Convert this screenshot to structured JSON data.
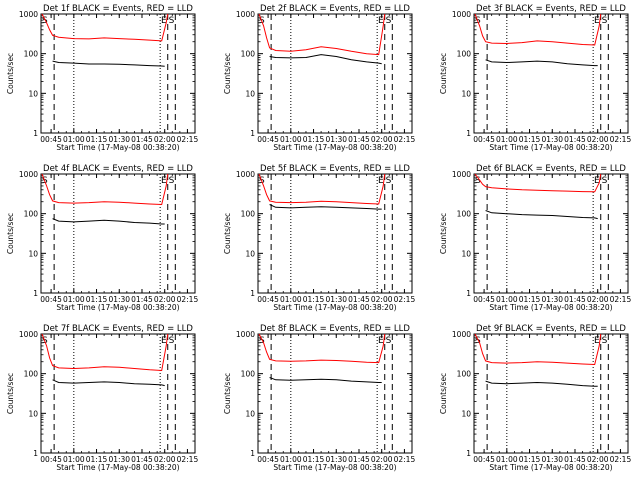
{
  "ylabel": "Counts/sec",
  "xlabel": "Start Time (17-May-08 00:38:20)",
  "x_tick_labels": [
    "00:45",
    "01:00",
    "01:15",
    "01:30",
    "01:45",
    "02:00",
    "02:15"
  ],
  "y_tick_labels": [
    "1",
    "10",
    "100",
    "1000"
  ],
  "marker_labels": [
    "S",
    "E",
    "S"
  ],
  "colors": {
    "events": "#000000",
    "lld": "#ff0000",
    "axes": "#000000",
    "background": "#ffffff"
  },
  "chart_data": [
    {
      "type": "line",
      "title": "Det 1f BLACK = Events, RED = LLD",
      "xlim": [
        "00:38:20",
        "02:20"
      ],
      "ylim": [
        1,
        1000
      ],
      "yscale": "log",
      "series": [
        {
          "name": "Events",
          "color": "#000000",
          "x": [
            "00:46",
            "00:50",
            "01:00",
            "01:10",
            "01:20",
            "01:30",
            "01:40",
            "01:50",
            "01:58",
            "02:00"
          ],
          "y": [
            65,
            60,
            58,
            55,
            55,
            54,
            52,
            50,
            49,
            48
          ]
        },
        {
          "name": "LLD",
          "color": "#ff0000",
          "x": [
            "00:39",
            "00:42",
            "00:44",
            "00:46",
            "00:50",
            "01:00",
            "01:10",
            "01:20",
            "01:30",
            "01:40",
            "01:50",
            "01:58",
            "02:01",
            "02:02"
          ],
          "y": [
            1000,
            600,
            400,
            290,
            260,
            240,
            235,
            250,
            240,
            230,
            220,
            210,
            600,
            1000
          ]
        }
      ],
      "vlines": [
        {
          "time": "00:47",
          "style": "dashed",
          "label": ""
        },
        {
          "time": "01:00",
          "style": "dotted",
          "label": ""
        },
        {
          "time": "01:57",
          "style": "dotted",
          "label": ""
        },
        {
          "time": "02:02",
          "style": "dashed",
          "label": "E"
        },
        {
          "time": "02:07",
          "style": "dashed",
          "label": "S"
        }
      ]
    },
    {
      "type": "line",
      "title": "Det 2f BLACK = Events, RED = LLD",
      "xlim": [
        "00:38:20",
        "02:20"
      ],
      "ylim": [
        1,
        1000
      ],
      "yscale": "log",
      "series": [
        {
          "name": "Events",
          "color": "#000000",
          "x": [
            "00:46",
            "00:50",
            "01:00",
            "01:10",
            "01:20",
            "01:30",
            "01:40",
            "01:50",
            "01:58",
            "02:00"
          ],
          "y": [
            85,
            80,
            78,
            80,
            95,
            85,
            70,
            62,
            58,
            56
          ]
        },
        {
          "name": "LLD",
          "color": "#ff0000",
          "x": [
            "00:39",
            "00:42",
            "00:44",
            "00:46",
            "00:50",
            "01:00",
            "01:10",
            "01:20",
            "01:30",
            "01:40",
            "01:50",
            "01:58",
            "02:01",
            "02:02"
          ],
          "y": [
            1000,
            500,
            250,
            140,
            120,
            115,
            125,
            150,
            135,
            115,
            100,
            95,
            500,
            1000
          ]
        }
      ],
      "vlines": [
        {
          "time": "00:47",
          "style": "dashed",
          "label": ""
        },
        {
          "time": "01:00",
          "style": "dotted",
          "label": ""
        },
        {
          "time": "01:57",
          "style": "dotted",
          "label": ""
        },
        {
          "time": "02:02",
          "style": "dashed",
          "label": "E"
        },
        {
          "time": "02:07",
          "style": "dashed",
          "label": "S"
        }
      ]
    },
    {
      "type": "line",
      "title": "Det 3f BLACK = Events, RED = LLD",
      "xlim": [
        "00:38:20",
        "02:20"
      ],
      "ylim": [
        1,
        1000
      ],
      "yscale": "log",
      "series": [
        {
          "name": "Events",
          "color": "#000000",
          "x": [
            "00:46",
            "00:50",
            "01:00",
            "01:10",
            "01:20",
            "01:30",
            "01:40",
            "01:50",
            "01:58",
            "02:00"
          ],
          "y": [
            70,
            62,
            60,
            62,
            65,
            62,
            56,
            52,
            50,
            50
          ]
        },
        {
          "name": "LLD",
          "color": "#ff0000",
          "x": [
            "00:39",
            "00:42",
            "00:44",
            "00:46",
            "00:50",
            "01:00",
            "01:10",
            "01:20",
            "01:30",
            "01:40",
            "01:50",
            "01:58",
            "02:01",
            "02:02"
          ],
          "y": [
            1000,
            500,
            280,
            200,
            185,
            180,
            190,
            210,
            200,
            185,
            170,
            165,
            500,
            1000
          ]
        }
      ],
      "vlines": [
        {
          "time": "00:47",
          "style": "dashed",
          "label": ""
        },
        {
          "time": "01:00",
          "style": "dotted",
          "label": ""
        },
        {
          "time": "01:57",
          "style": "dotted",
          "label": ""
        },
        {
          "time": "02:02",
          "style": "dashed",
          "label": "E"
        },
        {
          "time": "02:07",
          "style": "dashed",
          "label": "S"
        }
      ]
    },
    {
      "type": "line",
      "title": "Det 4f BLACK = Events, RED = LLD",
      "xlim": [
        "00:38:20",
        "02:20"
      ],
      "ylim": [
        1,
        1000
      ],
      "yscale": "log",
      "series": [
        {
          "name": "Events",
          "color": "#000000",
          "x": [
            "00:46",
            "00:50",
            "01:00",
            "01:10",
            "01:20",
            "01:30",
            "01:40",
            "01:50",
            "01:58",
            "02:00"
          ],
          "y": [
            75,
            65,
            62,
            65,
            68,
            65,
            60,
            58,
            55,
            55
          ]
        },
        {
          "name": "LLD",
          "color": "#ff0000",
          "x": [
            "00:39",
            "00:42",
            "00:44",
            "00:46",
            "00:50",
            "01:00",
            "01:10",
            "01:20",
            "01:30",
            "01:40",
            "01:50",
            "01:58",
            "02:01",
            "02:02"
          ],
          "y": [
            1000,
            500,
            300,
            210,
            190,
            185,
            190,
            200,
            195,
            185,
            175,
            170,
            500,
            1000
          ]
        }
      ],
      "vlines": [
        {
          "time": "00:47",
          "style": "dashed",
          "label": ""
        },
        {
          "time": "01:00",
          "style": "dotted",
          "label": ""
        },
        {
          "time": "01:57",
          "style": "dotted",
          "label": ""
        },
        {
          "time": "02:02",
          "style": "dashed",
          "label": "E"
        },
        {
          "time": "02:07",
          "style": "dashed",
          "label": "S"
        }
      ]
    },
    {
      "type": "line",
      "title": "Det 5f BLACK = Events, RED = LLD",
      "xlim": [
        "00:38:20",
        "02:20"
      ],
      "ylim": [
        1,
        1000
      ],
      "yscale": "log",
      "series": [
        {
          "name": "Events",
          "color": "#000000",
          "x": [
            "00:46",
            "00:50",
            "01:00",
            "01:10",
            "01:20",
            "01:30",
            "01:40",
            "01:50",
            "01:58",
            "02:00"
          ],
          "y": [
            170,
            145,
            140,
            145,
            150,
            145,
            140,
            135,
            130,
            130
          ]
        },
        {
          "name": "LLD",
          "color": "#ff0000",
          "x": [
            "00:39",
            "00:42",
            "00:44",
            "00:46",
            "00:50",
            "01:00",
            "01:10",
            "01:20",
            "01:30",
            "01:40",
            "01:50",
            "01:58",
            "02:01",
            "02:02"
          ],
          "y": [
            1000,
            500,
            300,
            210,
            195,
            190,
            195,
            205,
            200,
            190,
            180,
            175,
            500,
            1000
          ]
        }
      ],
      "vlines": [
        {
          "time": "00:47",
          "style": "dashed",
          "label": ""
        },
        {
          "time": "01:00",
          "style": "dotted",
          "label": ""
        },
        {
          "time": "01:57",
          "style": "dotted",
          "label": ""
        },
        {
          "time": "02:02",
          "style": "dashed",
          "label": "E"
        },
        {
          "time": "02:07",
          "style": "dashed",
          "label": "S"
        }
      ]
    },
    {
      "type": "line",
      "title": "Det 6f BLACK = Events, RED = LLD",
      "xlim": [
        "00:38:20",
        "02:20"
      ],
      "ylim": [
        1,
        1000
      ],
      "yscale": "log",
      "series": [
        {
          "name": "Events",
          "color": "#000000",
          "x": [
            "00:46",
            "00:50",
            "01:00",
            "01:10",
            "01:20",
            "01:30",
            "01:40",
            "01:50",
            "01:58",
            "02:00"
          ],
          "y": [
            120,
            105,
            100,
            95,
            92,
            90,
            85,
            80,
            78,
            75
          ]
        },
        {
          "name": "LLD",
          "color": "#ff0000",
          "x": [
            "00:39",
            "00:42",
            "00:44",
            "00:46",
            "00:50",
            "01:00",
            "01:10",
            "01:20",
            "01:30",
            "01:40",
            "01:50",
            "01:58",
            "02:01",
            "02:02"
          ],
          "y": [
            1000,
            700,
            550,
            480,
            450,
            420,
            400,
            390,
            380,
            370,
            360,
            355,
            600,
            1000
          ]
        }
      ],
      "vlines": [
        {
          "time": "00:47",
          "style": "dashed",
          "label": ""
        },
        {
          "time": "01:00",
          "style": "dotted",
          "label": ""
        },
        {
          "time": "01:57",
          "style": "dotted",
          "label": ""
        },
        {
          "time": "02:02",
          "style": "dashed",
          "label": "E"
        },
        {
          "time": "02:07",
          "style": "dashed",
          "label": "S"
        }
      ]
    },
    {
      "type": "line",
      "title": "Det 7f BLACK = Events, RED = LLD",
      "xlim": [
        "00:38:20",
        "02:20"
      ],
      "ylim": [
        1,
        1000
      ],
      "yscale": "log",
      "series": [
        {
          "name": "Events",
          "color": "#000000",
          "x": [
            "00:46",
            "00:50",
            "01:00",
            "01:10",
            "01:20",
            "01:30",
            "01:40",
            "01:50",
            "01:58",
            "02:00"
          ],
          "y": [
            70,
            60,
            58,
            60,
            62,
            60,
            56,
            54,
            52,
            50
          ]
        },
        {
          "name": "LLD",
          "color": "#ff0000",
          "x": [
            "00:39",
            "00:42",
            "00:44",
            "00:46",
            "00:50",
            "01:00",
            "01:10",
            "01:20",
            "01:30",
            "01:40",
            "01:50",
            "01:58",
            "02:01",
            "02:02"
          ],
          "y": [
            1000,
            500,
            250,
            160,
            140,
            135,
            140,
            150,
            145,
            135,
            125,
            120,
            500,
            1000
          ]
        }
      ],
      "vlines": [
        {
          "time": "00:47",
          "style": "dashed",
          "label": ""
        },
        {
          "time": "01:00",
          "style": "dotted",
          "label": ""
        },
        {
          "time": "01:57",
          "style": "dotted",
          "label": ""
        },
        {
          "time": "02:02",
          "style": "dashed",
          "label": "E"
        },
        {
          "time": "02:07",
          "style": "dashed",
          "label": "S"
        }
      ]
    },
    {
      "type": "line",
      "title": "Det 8f BLACK = Events, RED = LLD",
      "xlim": [
        "00:38:20",
        "02:20"
      ],
      "ylim": [
        1,
        1000
      ],
      "yscale": "log",
      "series": [
        {
          "name": "Events",
          "color": "#000000",
          "x": [
            "00:46",
            "00:50",
            "01:00",
            "01:10",
            "01:20",
            "01:30",
            "01:40",
            "01:50",
            "01:58",
            "02:00"
          ],
          "y": [
            80,
            70,
            68,
            70,
            72,
            70,
            65,
            62,
            60,
            60
          ]
        },
        {
          "name": "LLD",
          "color": "#ff0000",
          "x": [
            "00:39",
            "00:42",
            "00:44",
            "00:46",
            "00:50",
            "01:00",
            "01:10",
            "01:20",
            "01:30",
            "01:40",
            "01:50",
            "01:58",
            "02:01",
            "02:02"
          ],
          "y": [
            1000,
            600,
            350,
            230,
            210,
            205,
            210,
            220,
            215,
            205,
            195,
            190,
            500,
            1000
          ]
        }
      ],
      "vlines": [
        {
          "time": "00:47",
          "style": "dashed",
          "label": ""
        },
        {
          "time": "01:00",
          "style": "dotted",
          "label": ""
        },
        {
          "time": "01:57",
          "style": "dotted",
          "label": ""
        },
        {
          "time": "02:02",
          "style": "dashed",
          "label": "E"
        },
        {
          "time": "02:07",
          "style": "dashed",
          "label": "S"
        }
      ]
    },
    {
      "type": "line",
      "title": "Det 9f BLACK = Events, RED = LLD",
      "xlim": [
        "00:38:20",
        "02:20"
      ],
      "ylim": [
        1,
        1000
      ],
      "yscale": "log",
      "series": [
        {
          "name": "Events",
          "color": "#000000",
          "x": [
            "00:46",
            "00:50",
            "01:00",
            "01:10",
            "01:20",
            "01:30",
            "01:40",
            "01:50",
            "01:58",
            "02:00"
          ],
          "y": [
            65,
            58,
            56,
            58,
            60,
            58,
            54,
            50,
            48,
            48
          ]
        },
        {
          "name": "LLD",
          "color": "#ff0000",
          "x": [
            "00:39",
            "00:42",
            "00:44",
            "00:46",
            "00:50",
            "01:00",
            "01:10",
            "01:20",
            "01:30",
            "01:40",
            "01:50",
            "01:58",
            "02:01",
            "02:02"
          ],
          "y": [
            1000,
            600,
            320,
            210,
            190,
            185,
            190,
            200,
            195,
            185,
            175,
            170,
            500,
            1000
          ]
        }
      ],
      "vlines": [
        {
          "time": "00:47",
          "style": "dashed",
          "label": ""
        },
        {
          "time": "01:00",
          "style": "dotted",
          "label": ""
        },
        {
          "time": "01:57",
          "style": "dotted",
          "label": ""
        },
        {
          "time": "02:02",
          "style": "dashed",
          "label": "E"
        },
        {
          "time": "02:07",
          "style": "dashed",
          "label": "S"
        }
      ]
    }
  ]
}
